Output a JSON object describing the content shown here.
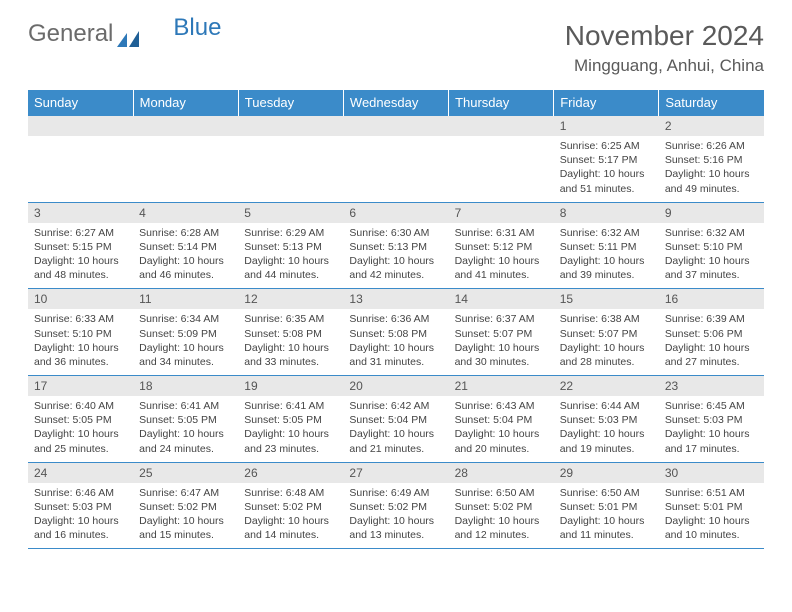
{
  "logo": {
    "text1": "General",
    "text2": "Blue"
  },
  "title": "November 2024",
  "location": "Mingguang, Anhui, China",
  "colors": {
    "header_bg": "#3b8bc9",
    "header_fg": "#ffffff",
    "daynum_bg": "#e8e8e8",
    "border": "#3b8bc9",
    "text": "#444444",
    "title": "#5a5a5a",
    "logo_gray": "#6b6b6b",
    "logo_blue": "#2d78b8"
  },
  "day_headers": [
    "Sunday",
    "Monday",
    "Tuesday",
    "Wednesday",
    "Thursday",
    "Friday",
    "Saturday"
  ],
  "weeks": [
    {
      "nums": [
        "",
        "",
        "",
        "",
        "",
        "1",
        "2"
      ],
      "cells": [
        {},
        {},
        {},
        {},
        {},
        {
          "sunrise": "Sunrise: 6:25 AM",
          "sunset": "Sunset: 5:17 PM",
          "daylight": "Daylight: 10 hours and 51 minutes."
        },
        {
          "sunrise": "Sunrise: 6:26 AM",
          "sunset": "Sunset: 5:16 PM",
          "daylight": "Daylight: 10 hours and 49 minutes."
        }
      ]
    },
    {
      "nums": [
        "3",
        "4",
        "5",
        "6",
        "7",
        "8",
        "9"
      ],
      "cells": [
        {
          "sunrise": "Sunrise: 6:27 AM",
          "sunset": "Sunset: 5:15 PM",
          "daylight": "Daylight: 10 hours and 48 minutes."
        },
        {
          "sunrise": "Sunrise: 6:28 AM",
          "sunset": "Sunset: 5:14 PM",
          "daylight": "Daylight: 10 hours and 46 minutes."
        },
        {
          "sunrise": "Sunrise: 6:29 AM",
          "sunset": "Sunset: 5:13 PM",
          "daylight": "Daylight: 10 hours and 44 minutes."
        },
        {
          "sunrise": "Sunrise: 6:30 AM",
          "sunset": "Sunset: 5:13 PM",
          "daylight": "Daylight: 10 hours and 42 minutes."
        },
        {
          "sunrise": "Sunrise: 6:31 AM",
          "sunset": "Sunset: 5:12 PM",
          "daylight": "Daylight: 10 hours and 41 minutes."
        },
        {
          "sunrise": "Sunrise: 6:32 AM",
          "sunset": "Sunset: 5:11 PM",
          "daylight": "Daylight: 10 hours and 39 minutes."
        },
        {
          "sunrise": "Sunrise: 6:32 AM",
          "sunset": "Sunset: 5:10 PM",
          "daylight": "Daylight: 10 hours and 37 minutes."
        }
      ]
    },
    {
      "nums": [
        "10",
        "11",
        "12",
        "13",
        "14",
        "15",
        "16"
      ],
      "cells": [
        {
          "sunrise": "Sunrise: 6:33 AM",
          "sunset": "Sunset: 5:10 PM",
          "daylight": "Daylight: 10 hours and 36 minutes."
        },
        {
          "sunrise": "Sunrise: 6:34 AM",
          "sunset": "Sunset: 5:09 PM",
          "daylight": "Daylight: 10 hours and 34 minutes."
        },
        {
          "sunrise": "Sunrise: 6:35 AM",
          "sunset": "Sunset: 5:08 PM",
          "daylight": "Daylight: 10 hours and 33 minutes."
        },
        {
          "sunrise": "Sunrise: 6:36 AM",
          "sunset": "Sunset: 5:08 PM",
          "daylight": "Daylight: 10 hours and 31 minutes."
        },
        {
          "sunrise": "Sunrise: 6:37 AM",
          "sunset": "Sunset: 5:07 PM",
          "daylight": "Daylight: 10 hours and 30 minutes."
        },
        {
          "sunrise": "Sunrise: 6:38 AM",
          "sunset": "Sunset: 5:07 PM",
          "daylight": "Daylight: 10 hours and 28 minutes."
        },
        {
          "sunrise": "Sunrise: 6:39 AM",
          "sunset": "Sunset: 5:06 PM",
          "daylight": "Daylight: 10 hours and 27 minutes."
        }
      ]
    },
    {
      "nums": [
        "17",
        "18",
        "19",
        "20",
        "21",
        "22",
        "23"
      ],
      "cells": [
        {
          "sunrise": "Sunrise: 6:40 AM",
          "sunset": "Sunset: 5:05 PM",
          "daylight": "Daylight: 10 hours and 25 minutes."
        },
        {
          "sunrise": "Sunrise: 6:41 AM",
          "sunset": "Sunset: 5:05 PM",
          "daylight": "Daylight: 10 hours and 24 minutes."
        },
        {
          "sunrise": "Sunrise: 6:41 AM",
          "sunset": "Sunset: 5:05 PM",
          "daylight": "Daylight: 10 hours and 23 minutes."
        },
        {
          "sunrise": "Sunrise: 6:42 AM",
          "sunset": "Sunset: 5:04 PM",
          "daylight": "Daylight: 10 hours and 21 minutes."
        },
        {
          "sunrise": "Sunrise: 6:43 AM",
          "sunset": "Sunset: 5:04 PM",
          "daylight": "Daylight: 10 hours and 20 minutes."
        },
        {
          "sunrise": "Sunrise: 6:44 AM",
          "sunset": "Sunset: 5:03 PM",
          "daylight": "Daylight: 10 hours and 19 minutes."
        },
        {
          "sunrise": "Sunrise: 6:45 AM",
          "sunset": "Sunset: 5:03 PM",
          "daylight": "Daylight: 10 hours and 17 minutes."
        }
      ]
    },
    {
      "nums": [
        "24",
        "25",
        "26",
        "27",
        "28",
        "29",
        "30"
      ],
      "cells": [
        {
          "sunrise": "Sunrise: 6:46 AM",
          "sunset": "Sunset: 5:03 PM",
          "daylight": "Daylight: 10 hours and 16 minutes."
        },
        {
          "sunrise": "Sunrise: 6:47 AM",
          "sunset": "Sunset: 5:02 PM",
          "daylight": "Daylight: 10 hours and 15 minutes."
        },
        {
          "sunrise": "Sunrise: 6:48 AM",
          "sunset": "Sunset: 5:02 PM",
          "daylight": "Daylight: 10 hours and 14 minutes."
        },
        {
          "sunrise": "Sunrise: 6:49 AM",
          "sunset": "Sunset: 5:02 PM",
          "daylight": "Daylight: 10 hours and 13 minutes."
        },
        {
          "sunrise": "Sunrise: 6:50 AM",
          "sunset": "Sunset: 5:02 PM",
          "daylight": "Daylight: 10 hours and 12 minutes."
        },
        {
          "sunrise": "Sunrise: 6:50 AM",
          "sunset": "Sunset: 5:01 PM",
          "daylight": "Daylight: 10 hours and 11 minutes."
        },
        {
          "sunrise": "Sunrise: 6:51 AM",
          "sunset": "Sunset: 5:01 PM",
          "daylight": "Daylight: 10 hours and 10 minutes."
        }
      ]
    }
  ]
}
